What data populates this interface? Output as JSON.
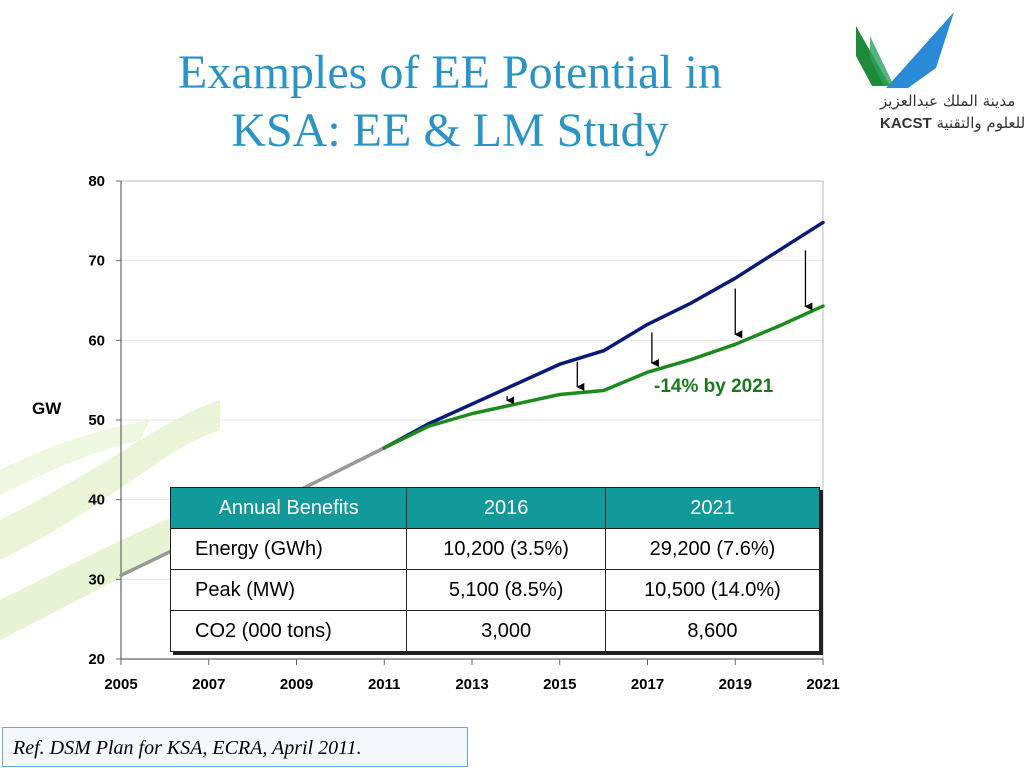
{
  "slide": {
    "title_line1": "Examples of EE Potential in",
    "title_line2": "KSA: EE & LM Study",
    "logo": {
      "arabic_line1": "مدينة الملك عبدالعزيز",
      "arabic_line2": "للعلوم والتقنية",
      "abbr": "KACST"
    },
    "reference": "Ref. DSM Plan for KSA, ECRA, April  2011.",
    "colors": {
      "title": "#2a94c8",
      "baseline": "#0a1a7a",
      "ee_case": "#1e8a1e",
      "historic": "#999999",
      "table_header": "#12999a",
      "annotation": "#1a7a1a"
    }
  },
  "chart_data": {
    "type": "line",
    "ylabel": "GW",
    "xlabel": "",
    "xlim": [
      2005,
      2021
    ],
    "ylim": [
      20,
      80
    ],
    "x_ticks": [
      "2005",
      "2007",
      "2009",
      "2011",
      "2013",
      "2015",
      "2017",
      "2019",
      "2021"
    ],
    "y_ticks": [
      "20",
      "30",
      "40",
      "50",
      "60",
      "70",
      "80"
    ],
    "grid": true,
    "series": [
      {
        "x": [
          2005,
          2007,
          2009,
          2011
        ],
        "y": [
          30.5,
          35.8,
          41.0,
          46.5
        ]
      },
      {
        "x": [
          2011,
          2012,
          2013,
          2014,
          2015,
          2016,
          2017,
          2018,
          2019,
          2020,
          2021
        ],
        "y": [
          46.5,
          49.5,
          52.0,
          54.5,
          57.0,
          58.7,
          62.0,
          64.7,
          67.8,
          71.3,
          74.8
        ]
      },
      {
        "x": [
          2011,
          2012,
          2013,
          2014,
          2015,
          2016,
          2017,
          2018,
          2019,
          2020,
          2021
        ],
        "y": [
          46.5,
          49.2,
          50.8,
          52.0,
          53.2,
          53.7,
          56.0,
          57.6,
          59.5,
          61.8,
          64.3
        ]
      }
    ],
    "reduction_arrows": [
      {
        "x": 2013.8,
        "from": 53.0,
        "to": 51.7
      },
      {
        "x": 2015.4,
        "from": 57.3,
        "to": 53.4
      },
      {
        "x": 2017.1,
        "from": 61.0,
        "to": 56.4
      },
      {
        "x": 2019.0,
        "from": 66.5,
        "to": 60.0
      },
      {
        "x": 2020.6,
        "from": 71.3,
        "to": 63.5
      }
    ],
    "annotation": "-14% by 2021",
    "table": {
      "headers": [
        "Annual Benefits",
        "2016",
        "2021"
      ],
      "rows": [
        [
          "Energy (GWh)",
          "10,200 (3.5%)",
          "29,200 (7.6%)"
        ],
        [
          "Peak (MW)",
          "5,100 (8.5%)",
          "10,500 (14.0%)"
        ],
        [
          "CO2 (000 tons)",
          "3,000",
          "8,600"
        ]
      ]
    }
  }
}
